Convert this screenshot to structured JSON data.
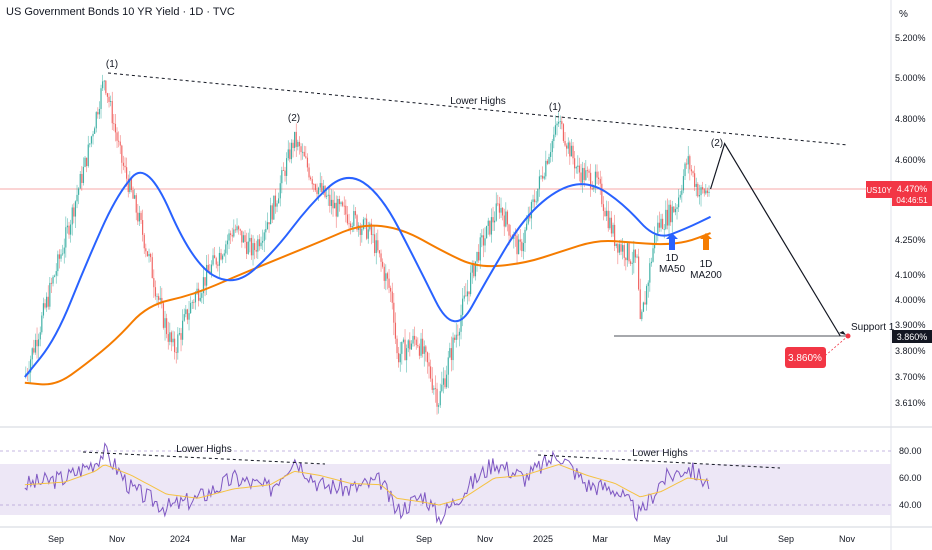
{
  "header": {
    "title": "US Government Bonds 10 YR Yield · 1D · TVC",
    "unit": "%"
  },
  "price_scale": {
    "ticks": [
      "5.200%",
      "5.000%",
      "4.800%",
      "4.600%",
      "4.250%",
      "4.100%",
      "4.000%",
      "3.900%",
      "3.800%",
      "3.700%",
      "3.610%"
    ],
    "symbol_label": "US10Y",
    "last_price": "4.470%",
    "countdown": "04:46:51",
    "support_price": "3.860%"
  },
  "rsi_scale": {
    "ticks": [
      "80.00",
      "60.00",
      "40.00"
    ]
  },
  "time_axis": {
    "labels": [
      "Sep",
      "Nov",
      "2024",
      "Mar",
      "May",
      "Jul",
      "Sep",
      "Nov",
      "2025",
      "Mar",
      "May",
      "Jul",
      "Sep",
      "Nov"
    ]
  },
  "annotations": {
    "peak_1_left": "(1)",
    "peak_2_left": "(2)",
    "peak_1_right": "(1)",
    "peak_2_right": "(2)",
    "lower_highs_price": "Lower Highs",
    "lower_highs_rsi_left": "Lower Highs",
    "lower_highs_rsi_right": "Lower Highs",
    "ma50_line1": "1D",
    "ma50_line2": "MA50",
    "ma200_line1": "1D",
    "ma200_line2": "MA200",
    "support": "Support 1",
    "target_badge": "3.860%"
  },
  "colors": {
    "up_candle": "#26a69a",
    "down_candle": "#ef5350",
    "ma50": "#2962ff",
    "ma200": "#f57c00",
    "rsi": "#7e57c2",
    "rsi_ma": "#f5c242",
    "rsi_band": "#ede7f6",
    "badge": "#f23645"
  },
  "chart_data": [
    {
      "type": "line",
      "title": "US Government Bonds 10 YR Yield · 1D · TVC",
      "xlabel": "",
      "ylabel": "%",
      "ylim": [
        3.55,
        5.25
      ],
      "x": [
        "2023-08-01",
        "2023-08-20",
        "2023-09-10",
        "2023-10-01",
        "2023-10-19",
        "2023-11-05",
        "2023-11-25",
        "2023-12-15",
        "2023-12-27",
        "2024-01-15",
        "2024-02-05",
        "2024-02-25",
        "2024-03-15",
        "2024-04-05",
        "2024-04-25",
        "2024-05-15",
        "2024-06-01",
        "2024-06-20",
        "2024-07-10",
        "2024-08-01",
        "2024-08-05",
        "2024-08-25",
        "2024-09-16",
        "2024-10-05",
        "2024-10-25",
        "2024-11-15",
        "2024-12-05",
        "2024-12-25",
        "2025-01-13",
        "2025-02-01",
        "2025-02-20",
        "2025-03-10",
        "2025-04-01",
        "2025-04-04",
        "2025-04-20",
        "2025-05-10",
        "2025-05-21",
        "2025-06-02",
        "2025-06-13"
      ],
      "series": [
        {
          "values": [
            3.7,
            3.95,
            4.25,
            4.6,
            5.0,
            4.6,
            4.3,
            3.95,
            3.8,
            4.0,
            4.15,
            4.3,
            4.2,
            4.4,
            4.7,
            4.5,
            4.4,
            4.35,
            4.28,
            4.0,
            3.78,
            3.85,
            3.62,
            3.9,
            4.2,
            4.4,
            4.2,
            4.5,
            4.79,
            4.55,
            4.5,
            4.25,
            4.15,
            3.88,
            4.3,
            4.4,
            4.6,
            4.45,
            4.47
          ]
        }
      ],
      "moving_averages": {
        "ma50": {
          "x": [
            "2023-08-01",
            "2023-09-01",
            "2023-10-01",
            "2023-11-01",
            "2023-12-01",
            "2024-01-15",
            "2024-02-25",
            "2024-04-05",
            "2024-05-10",
            "2024-06-15",
            "2024-07-20",
            "2024-08-25",
            "2024-10-01",
            "2024-11-05",
            "2024-12-10",
            "2025-01-15",
            "2025-02-15",
            "2025-03-20",
            "2025-04-20",
            "2025-05-20",
            "2025-06-13"
          ],
          "values": [
            3.7,
            3.85,
            4.15,
            4.45,
            4.6,
            4.15,
            4.05,
            4.2,
            4.4,
            4.55,
            4.45,
            4.15,
            3.85,
            4.1,
            4.35,
            4.48,
            4.5,
            4.4,
            4.25,
            4.3,
            4.35
          ]
        },
        "ma200": {
          "x": [
            "2023-08-01",
            "2023-09-01",
            "2023-10-01",
            "2023-11-01",
            "2023-12-01",
            "2024-01-15",
            "2024-03-01",
            "2024-04-15",
            "2024-05-25",
            "2024-07-01",
            "2024-08-10",
            "2024-09-20",
            "2024-10-25",
            "2024-12-10",
            "2025-01-15",
            "2025-02-20",
            "2025-03-25",
            "2025-04-25",
            "2025-05-20",
            "2025-06-13"
          ],
          "values": [
            3.68,
            3.67,
            3.75,
            3.85,
            3.98,
            4.02,
            4.1,
            4.18,
            4.25,
            4.32,
            4.3,
            4.2,
            4.13,
            4.15,
            4.2,
            4.25,
            4.24,
            4.23,
            4.24,
            4.28
          ]
        }
      },
      "projection": {
        "x": [
          "2025-06-13",
          "2025-06-27",
          "2025-10-20"
        ],
        "values": [
          4.47,
          4.68,
          3.86
        ]
      },
      "support_level": 3.86
    },
    {
      "type": "line",
      "title": "",
      "ylim": [
        25,
        90
      ],
      "bands": [
        40,
        60,
        80
      ],
      "x": [
        "2023-08-01",
        "2023-09-10",
        "2023-10-10",
        "2023-10-19",
        "2023-11-15",
        "2023-12-20",
        "2024-01-20",
        "2024-02-25",
        "2024-04-01",
        "2024-04-25",
        "2024-05-20",
        "2024-06-20",
        "2024-07-20",
        "2024-08-05",
        "2024-09-01",
        "2024-09-16",
        "2024-10-10",
        "2024-11-10",
        "2024-12-10",
        "2025-01-13",
        "2025-02-10",
        "2025-03-10",
        "2025-04-04",
        "2025-04-25",
        "2025-05-21",
        "2025-06-13"
      ],
      "series": [
        {
          "name": "RSI",
          "values": [
            55,
            60,
            72,
            80,
            52,
            38,
            45,
            60,
            52,
            75,
            55,
            52,
            58,
            35,
            48,
            30,
            50,
            72,
            60,
            78,
            55,
            52,
            32,
            58,
            68,
            55
          ]
        },
        {
          "name": "RSI MA",
          "values": [
            55,
            57,
            65,
            70,
            62,
            48,
            45,
            52,
            55,
            65,
            62,
            56,
            55,
            45,
            42,
            40,
            45,
            60,
            62,
            70,
            62,
            56,
            46,
            50,
            60,
            58
          ]
        }
      ]
    }
  ]
}
